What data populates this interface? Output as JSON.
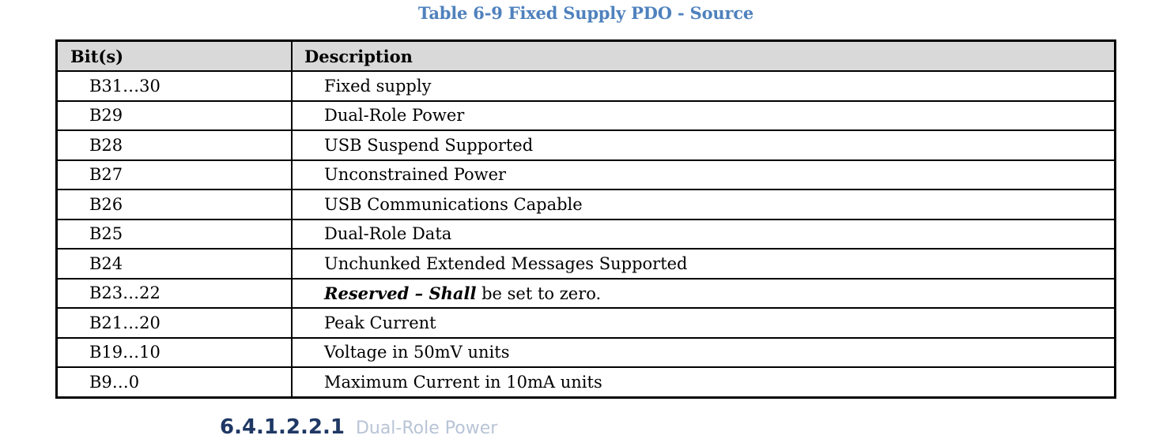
{
  "caption": "Table 6-9 Fixed Supply PDO - Source",
  "table": {
    "headers": {
      "bits": "Bit(s)",
      "description": "Description"
    },
    "rows": [
      {
        "bits": "B31…30",
        "description": "Fixed supply"
      },
      {
        "bits": "B29",
        "description": "Dual-Role Power"
      },
      {
        "bits": "B28",
        "description": "USB Suspend Supported"
      },
      {
        "bits": "B27",
        "description": "Unconstrained Power"
      },
      {
        "bits": "B26",
        "description": "USB Communications Capable"
      },
      {
        "bits": "B25",
        "description": "Dual-Role Data"
      },
      {
        "bits": "B24",
        "description": "Unchunked Extended Messages Supported"
      },
      {
        "bits": "B23…22",
        "description_parts": {
          "emph1": "Reserved",
          "dash": " – ",
          "emph2": "Shall",
          "rest": " be set to zero."
        }
      },
      {
        "bits": "B21…20",
        "description": "Peak Current"
      },
      {
        "bits": "B19…10",
        "description": "Voltage in 50mV units"
      },
      {
        "bits": "B9…0",
        "description": "Maximum Current in 10mA units"
      }
    ]
  },
  "next_heading": {
    "number": "6.4.1.2.2.1",
    "title": "Dual-Role Power"
  },
  "colors": {
    "caption": "#4f81bd",
    "header_bg": "#d9d9d9",
    "border": "#000000"
  }
}
